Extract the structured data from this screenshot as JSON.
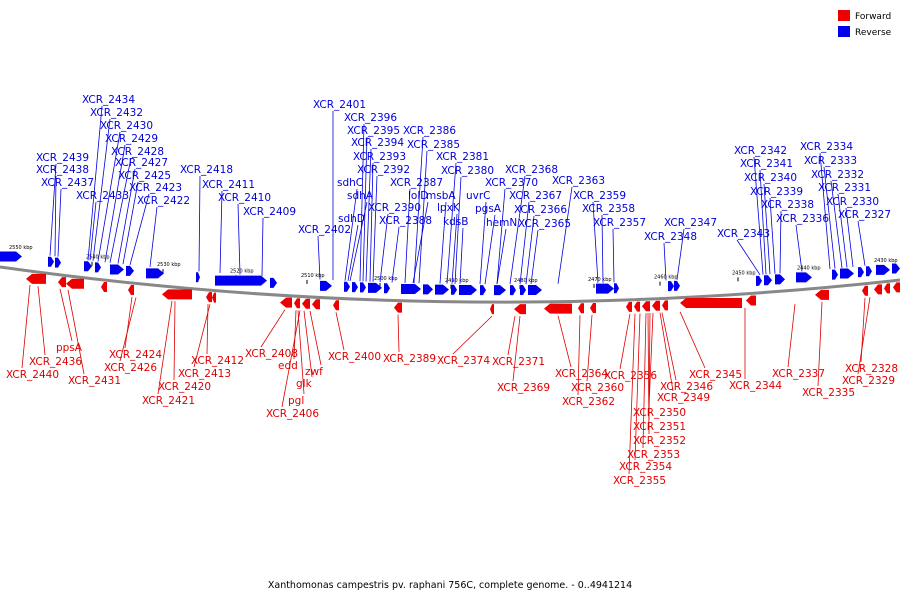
{
  "caption": "Xanthomonas campestris pv. raphani 756C, complete genome. - 0..4941214",
  "legend": [
    {
      "label": "Forward",
      "color": "#ee0000"
    },
    {
      "label": "Reverse",
      "color": "#0000ee"
    }
  ],
  "ticks": [
    "2550 kbp",
    "2540 kbp",
    "2530 kbp",
    "2520 kbp",
    "2510 kbp",
    "2500 kbp",
    "2490 kbp",
    "2480 kbp",
    "2470 kbp",
    "2460 kbp",
    "2450 kbp",
    "2440 kbp",
    "2430 kbp"
  ],
  "reverse_labels": [
    "XCR_2434",
    "XCR_2432",
    "XCR_2430",
    "XCR_2429",
    "XCR_2428",
    "XCR_2427",
    "XCR_2425",
    "XCR_2423",
    "XCR_2422",
    "XCR_2433",
    "XCR_2439",
    "XCR_2438",
    "XCR_2437",
    "XCR_2418",
    "XCR_2411",
    "XCR_2410",
    "XCR_2409",
    "XCR_2401",
    "XCR_2396",
    "XCR_2395",
    "XCR_2394",
    "XCR_2393",
    "XCR_2392",
    "sdhC",
    "sdhA",
    "sdhD",
    "XCR_2402",
    "XCR_2386",
    "XCR_2385",
    "XCR_2381",
    "XCR_2380",
    "XCR_2387",
    "lolD",
    "XCR_2390",
    "XCR_2388",
    "msbA",
    "lpxK",
    "kdsB",
    "uvrC",
    "pgsA",
    "hemN",
    "XCR_2368",
    "XCR_2370",
    "XCR_2367",
    "XCR_2366",
    "XCR_2365",
    "XCR_2363",
    "XCR_2359",
    "XCR_2358",
    "XCR_2357",
    "XCR_2347",
    "XCR_2348",
    "XCR_2343",
    "XCR_2342",
    "XCR_2341",
    "XCR_2340",
    "XCR_2339",
    "XCR_2338",
    "XCR_2336",
    "XCR_2334",
    "XCR_2333",
    "XCR_2332",
    "XCR_2331",
    "XCR_2330",
    "XCR_2327"
  ],
  "forward_labels": [
    "ppsA",
    "XCR_2436",
    "XCR_2440",
    "XCR_2431",
    "XCR_2424",
    "XCR_2426",
    "XCR_2420",
    "XCR_2421",
    "XCR_2412",
    "XCR_2413",
    "XCR_2408",
    "edd",
    "zwf",
    "glk",
    "pgl",
    "XCR_2406",
    "XCR_2400",
    "XCR_2389",
    "XCR_2374",
    "XCR_2371",
    "XCR_2369",
    "XCR_2364",
    "XCR_2360",
    "XCR_2362",
    "XCR_2356",
    "XCR_2349",
    "XCR_2350",
    "XCR_2351",
    "XCR_2352",
    "XCR_2353",
    "XCR_2354",
    "XCR_2355",
    "XCR_2346",
    "XCR_2345",
    "XCR_2344",
    "XCR_2337",
    "XCR_2335",
    "XCR_2328",
    "XCR_2329"
  ]
}
